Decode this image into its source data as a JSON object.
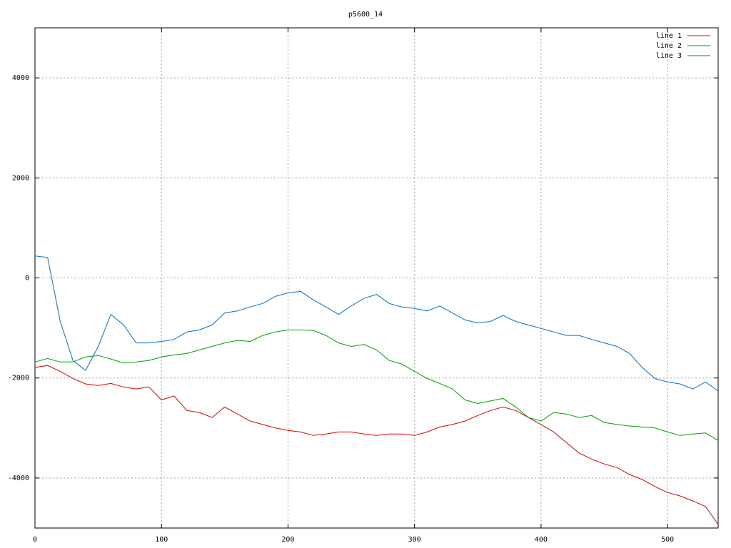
{
  "chart_data": {
    "type": "line",
    "title": "p5600_14",
    "x": [
      0,
      10,
      20,
      30,
      40,
      50,
      60,
      70,
      80,
      90,
      100,
      110,
      120,
      130,
      140,
      150,
      160,
      170,
      180,
      190,
      200,
      210,
      220,
      230,
      240,
      250,
      260,
      270,
      280,
      290,
      300,
      310,
      320,
      330,
      340,
      350,
      360,
      370,
      380,
      390,
      400,
      410,
      420,
      430,
      440,
      450,
      460,
      470,
      480,
      490,
      500,
      510,
      520,
      530,
      540
    ],
    "series": [
      {
        "name": "line 1",
        "color": "#e00000",
        "values": [
          -1790,
          -1750,
          -1870,
          -2010,
          -2120,
          -2150,
          -2110,
          -2180,
          -2220,
          -2180,
          -2440,
          -2360,
          -2650,
          -2690,
          -2790,
          -2580,
          -2720,
          -2860,
          -2930,
          -3000,
          -3050,
          -3080,
          -3150,
          -3120,
          -3080,
          -3080,
          -3120,
          -3150,
          -3120,
          -3120,
          -3150,
          -3080,
          -2980,
          -2930,
          -2860,
          -2750,
          -2650,
          -2580,
          -2650,
          -2790,
          -2930,
          -3080,
          -3290,
          -3500,
          -3620,
          -3720,
          -3790,
          -3930,
          -4030,
          -4170,
          -4290,
          -4360,
          -4460,
          -4570,
          -4930
        ]
      },
      {
        "name": "line 2",
        "color": "#00a000",
        "values": [
          -1680,
          -1610,
          -1680,
          -1680,
          -1580,
          -1550,
          -1620,
          -1700,
          -1680,
          -1650,
          -1580,
          -1540,
          -1510,
          -1440,
          -1370,
          -1300,
          -1250,
          -1270,
          -1150,
          -1080,
          -1040,
          -1040,
          -1050,
          -1150,
          -1300,
          -1370,
          -1330,
          -1440,
          -1650,
          -1720,
          -1870,
          -2010,
          -2110,
          -2220,
          -2440,
          -2510,
          -2460,
          -2410,
          -2580,
          -2790,
          -2860,
          -2690,
          -2720,
          -2790,
          -2750,
          -2890,
          -2930,
          -2960,
          -2980,
          -3000,
          -3080,
          -3150,
          -3120,
          -3100,
          -3250
        ]
      },
      {
        "name": "line 3",
        "color": "#0070d0",
        "values": [
          440,
          410,
          -870,
          -1650,
          -1850,
          -1370,
          -730,
          -940,
          -1300,
          -1300,
          -1270,
          -1230,
          -1080,
          -1040,
          -940,
          -700,
          -660,
          -580,
          -510,
          -370,
          -300,
          -270,
          -440,
          -580,
          -730,
          -560,
          -410,
          -330,
          -510,
          -580,
          -610,
          -660,
          -560,
          -700,
          -840,
          -900,
          -870,
          -750,
          -870,
          -940,
          -1010,
          -1080,
          -1150,
          -1150,
          -1230,
          -1300,
          -1370,
          -1510,
          -1790,
          -2010,
          -2080,
          -2120,
          -2220,
          -2080,
          -2260
        ]
      }
    ],
    "xlim": [
      0,
      540
    ],
    "ylim": [
      -5000,
      5000
    ],
    "xticks": [
      0,
      100,
      200,
      300,
      400,
      500
    ],
    "yticks": [
      -4000,
      -2000,
      0,
      2000,
      4000
    ],
    "grid": true,
    "legend": "top-right"
  }
}
